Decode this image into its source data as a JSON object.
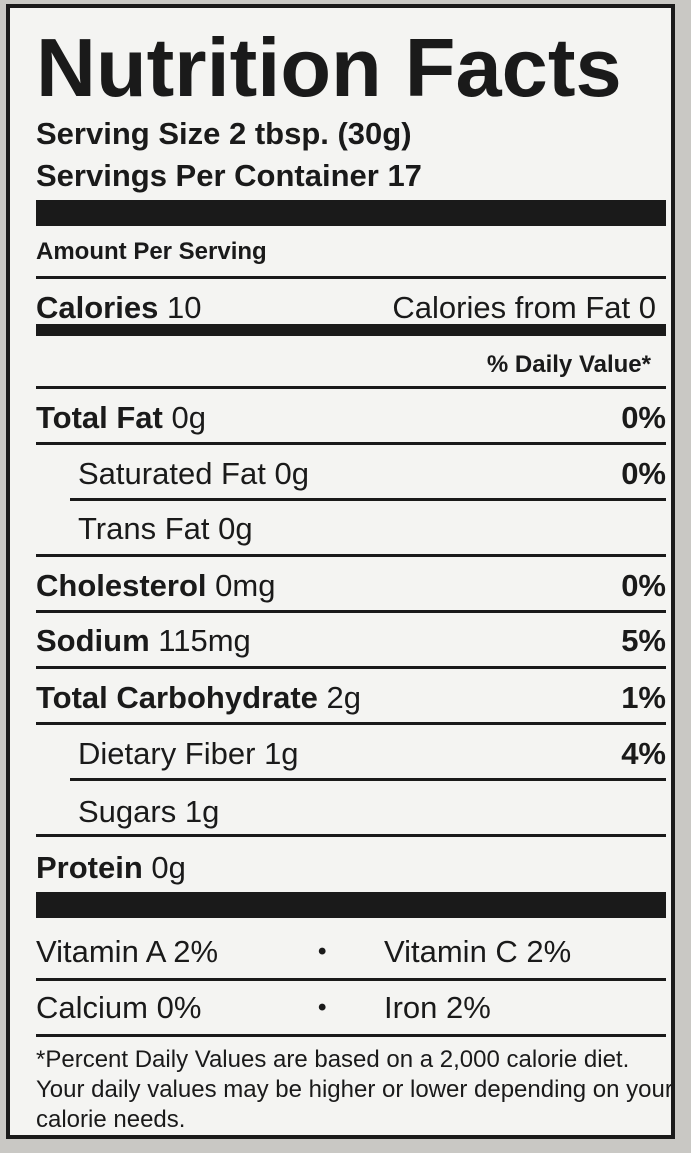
{
  "title": "Nutrition Facts",
  "serving_size": "Serving Size 2 tbsp. (30g)",
  "servings_per_container": "Servings Per Container 17",
  "amount_per_serving": "Amount Per Serving",
  "calories": {
    "label": "Calories",
    "value": "10"
  },
  "calories_from_fat": "Calories from Fat 0",
  "daily_value_header": "% Daily Value*",
  "nutrients": [
    {
      "name": "Total Fat",
      "amount": "0g",
      "dv": "0%"
    },
    {
      "name": "Saturated Fat",
      "amount": "0g",
      "dv": "0%"
    },
    {
      "name": "Trans Fat",
      "amount": "0g",
      "dv": ""
    },
    {
      "name": "Cholesterol",
      "amount": "0mg",
      "dv": "0%"
    },
    {
      "name": "Sodium",
      "amount": "115mg",
      "dv": "5%"
    },
    {
      "name": "Total Carbohydrate",
      "amount": "2g",
      "dv": "1%"
    },
    {
      "name": "Dietary Fiber",
      "amount": "1g",
      "dv": "4%"
    },
    {
      "name": "Sugars",
      "amount": "1g",
      "dv": ""
    },
    {
      "name": "Protein",
      "amount": "0g",
      "dv": ""
    }
  ],
  "vitamins": {
    "vitamin_a": "Vitamin A 2%",
    "vitamin_c": "Vitamin C 2%",
    "calcium": "Calcium 0%",
    "iron": "Iron 2%",
    "separator": "•"
  },
  "footnote": "*Percent Daily Values are based on a 2,000 calorie diet. Your daily values may be higher or lower depending on your calorie needs."
}
